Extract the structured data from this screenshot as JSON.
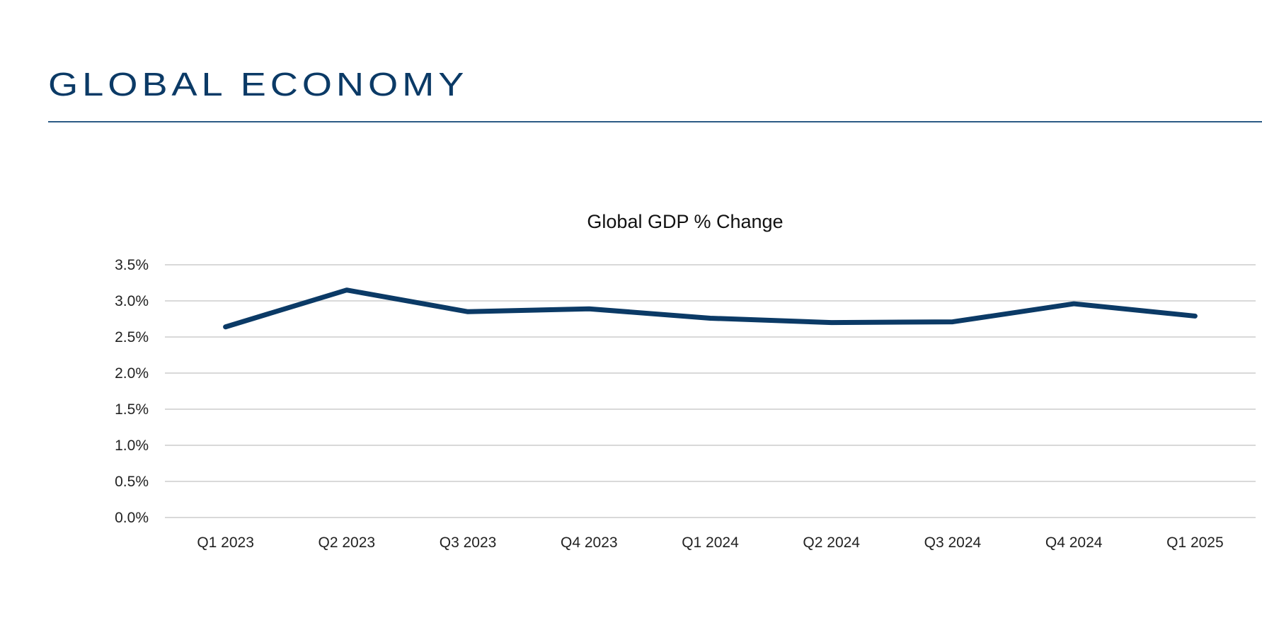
{
  "header": {
    "title": "GLOBAL ECONOMY"
  },
  "colors": {
    "accent": "#0b3a66",
    "grid": "#d9d9d9"
  },
  "chart_data": {
    "type": "line",
    "title": "Global GDP % Change",
    "xlabel": "",
    "ylabel": "",
    "categories": [
      "Q1 2023",
      "Q2 2023",
      "Q3 2023",
      "Q4 2023",
      "Q1 2024",
      "Q2 2024",
      "Q3 2024",
      "Q4 2024",
      "Q1 2025"
    ],
    "series": [
      {
        "name": "Global GDP % Change",
        "values": [
          2.64,
          3.15,
          2.85,
          2.89,
          2.76,
          2.7,
          2.71,
          2.96,
          2.79
        ]
      }
    ],
    "ylim": [
      0,
      3.5
    ],
    "yticks": [
      0,
      0.5,
      1.0,
      1.5,
      2.0,
      2.5,
      3.0,
      3.5
    ],
    "ytick_labels": [
      "0.0%",
      "0.5%",
      "1.0%",
      "1.5%",
      "2.0%",
      "2.5%",
      "3.0%",
      "3.5%"
    ],
    "grid": true,
    "legend": "none"
  }
}
